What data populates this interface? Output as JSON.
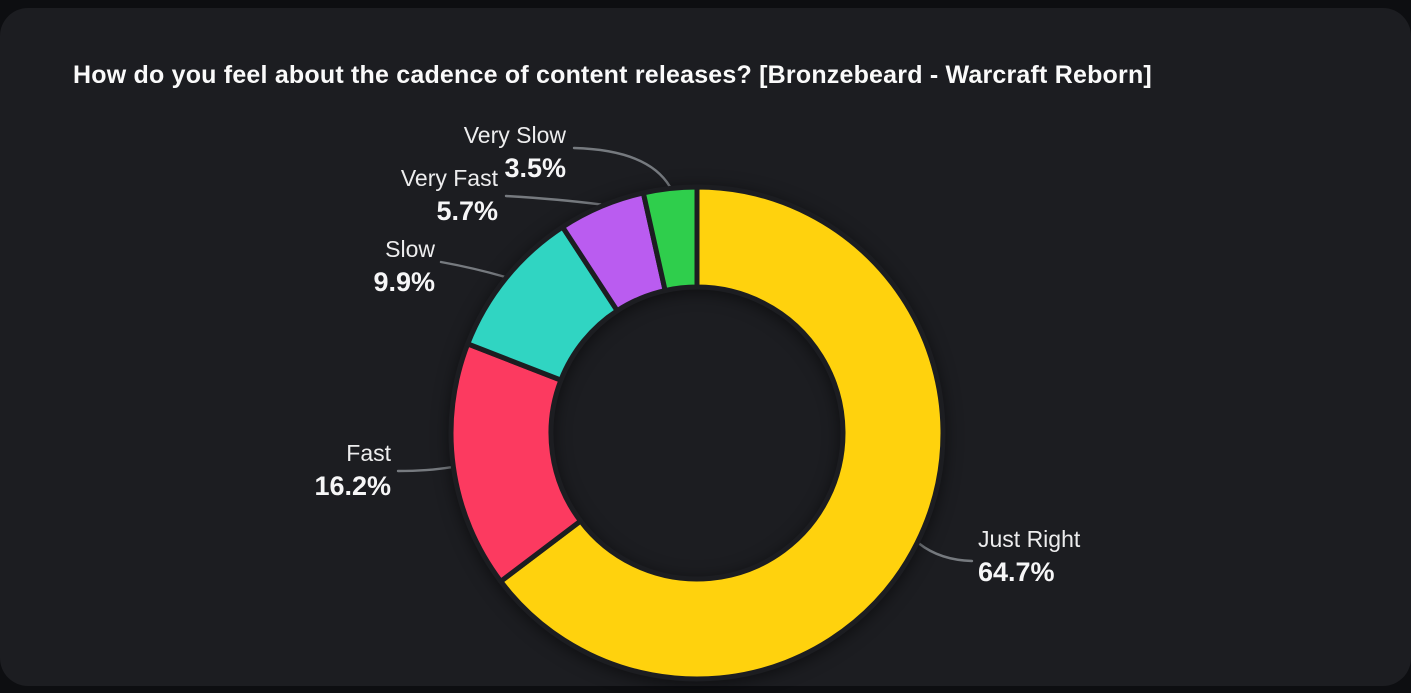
{
  "title": "How do you feel about the cadence of content releases? [Bronzebeard - Warcraft Reborn]",
  "colors": {
    "page_background": "#0d0e11",
    "panel_background": "#1c1d21",
    "title_text": "#fafafa",
    "label_text": "#ededee",
    "value_text": "#f6f6f7",
    "leader_line": "#7b7f85"
  },
  "chart_data": {
    "type": "pie",
    "donut": true,
    "title": "How do you feel about the cadence of content releases? [Bronzebeard - Warcraft Reborn]",
    "start_angle_deg": 0,
    "direction": "clockwise",
    "legend_position": "outside-callouts",
    "slices": [
      {
        "label": "Just Right",
        "value": 64.7,
        "display": "64.7%",
        "color": "#ffd20d"
      },
      {
        "label": "Fast",
        "value": 16.2,
        "display": "16.2%",
        "color": "#fc3a60"
      },
      {
        "label": "Slow",
        "value": 9.9,
        "display": "9.9%",
        "color": "#30d5c2"
      },
      {
        "label": "Very Fast",
        "value": 5.7,
        "display": "5.7%",
        "color": "#ba5cf0"
      },
      {
        "label": "Very Slow",
        "value": 3.5,
        "display": "3.5%",
        "color": "#2fce4c"
      }
    ]
  }
}
